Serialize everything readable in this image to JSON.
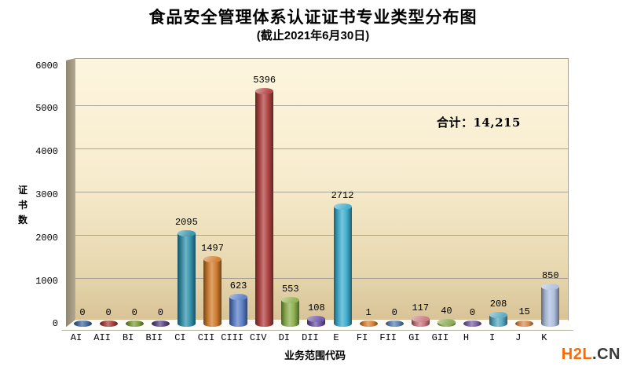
{
  "chart_data": {
    "type": "bar",
    "style": "3d-cylinder",
    "title": "食品安全管理体系认证证书专业类型分布图",
    "subtitle": "(截止2021年6月30日)",
    "xlabel": "业务范围代码",
    "ylabel": "证书数",
    "categories": [
      "AI",
      "AII",
      "BI",
      "BII",
      "CI",
      "CII",
      "CIII",
      "CIV",
      "DI",
      "DII",
      "E",
      "FI",
      "FII",
      "GI",
      "GII",
      "H",
      "I",
      "J",
      "K"
    ],
    "values": [
      0,
      0,
      0,
      0,
      2095,
      1497,
      623,
      5396,
      553,
      108,
      2712,
      1,
      0,
      117,
      40,
      0,
      208,
      15,
      850
    ],
    "bar_colors": [
      "#466fa0",
      "#a8433f",
      "#7e9e41",
      "#5f4a85",
      "#3492ac",
      "#d07c2d",
      "#5b7fc7",
      "#af4341",
      "#8db04e",
      "#6d55a5",
      "#3fadce",
      "#d8873a",
      "#5e84b5",
      "#c87880",
      "#88a852",
      "#7e64a5",
      "#58a9c2",
      "#d98e55",
      "#aebfde"
    ],
    "y_ticks": [
      0,
      1000,
      2000,
      3000,
      4000,
      5000,
      6000
    ],
    "ylim": [
      0,
      6000
    ],
    "grid": true,
    "data_labels": true,
    "legend": "none",
    "total_annotation": "合计：14,215",
    "plot_bg_top": "#fdf5de",
    "plot_bg_bottom": "#d8c396"
  },
  "watermark": {
    "primary": "H2L",
    "secondary": ".CN",
    "primary_color": "#ff6a00",
    "secondary_color": "#3b3b3b"
  }
}
